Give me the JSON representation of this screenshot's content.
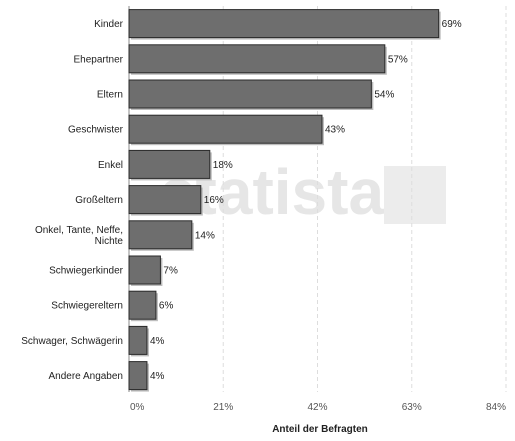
{
  "chart_data": {
    "type": "bar",
    "orientation": "horizontal",
    "categories": [
      [
        "Kinder"
      ],
      [
        "Ehepartner"
      ],
      [
        "Eltern"
      ],
      [
        "Geschwister"
      ],
      [
        "Enkel"
      ],
      [
        "Großeltern"
      ],
      [
        "Onkel, Tante, Neffe,",
        "Nichte"
      ],
      [
        "Schwiegerkinder"
      ],
      [
        "Schwiegereltern"
      ],
      [
        "Schwager, Schwägerin"
      ],
      [
        "Andere Angaben"
      ]
    ],
    "values": [
      69,
      57,
      54,
      43,
      18,
      16,
      14,
      7,
      6,
      4,
      4
    ],
    "value_labels": [
      "69%",
      "57%",
      "54%",
      "43%",
      "18%",
      "16%",
      "14%",
      "7%",
      "6%",
      "4%",
      "4%"
    ],
    "xticks": [
      0,
      21,
      42,
      63,
      84
    ],
    "xtick_labels": [
      "0%",
      "21%",
      "42%",
      "63%",
      "84%"
    ],
    "xlim": [
      0,
      84
    ],
    "xlabel": "Anteil der Befragten",
    "grid": "vertical dashed",
    "watermark": "statista",
    "colors": {
      "bar": "#6e6e6e",
      "bar_stroke": "#2a2a2a",
      "shadow": "#bdbdbd",
      "grid": "#dddddd",
      "axis": "#888888"
    }
  }
}
